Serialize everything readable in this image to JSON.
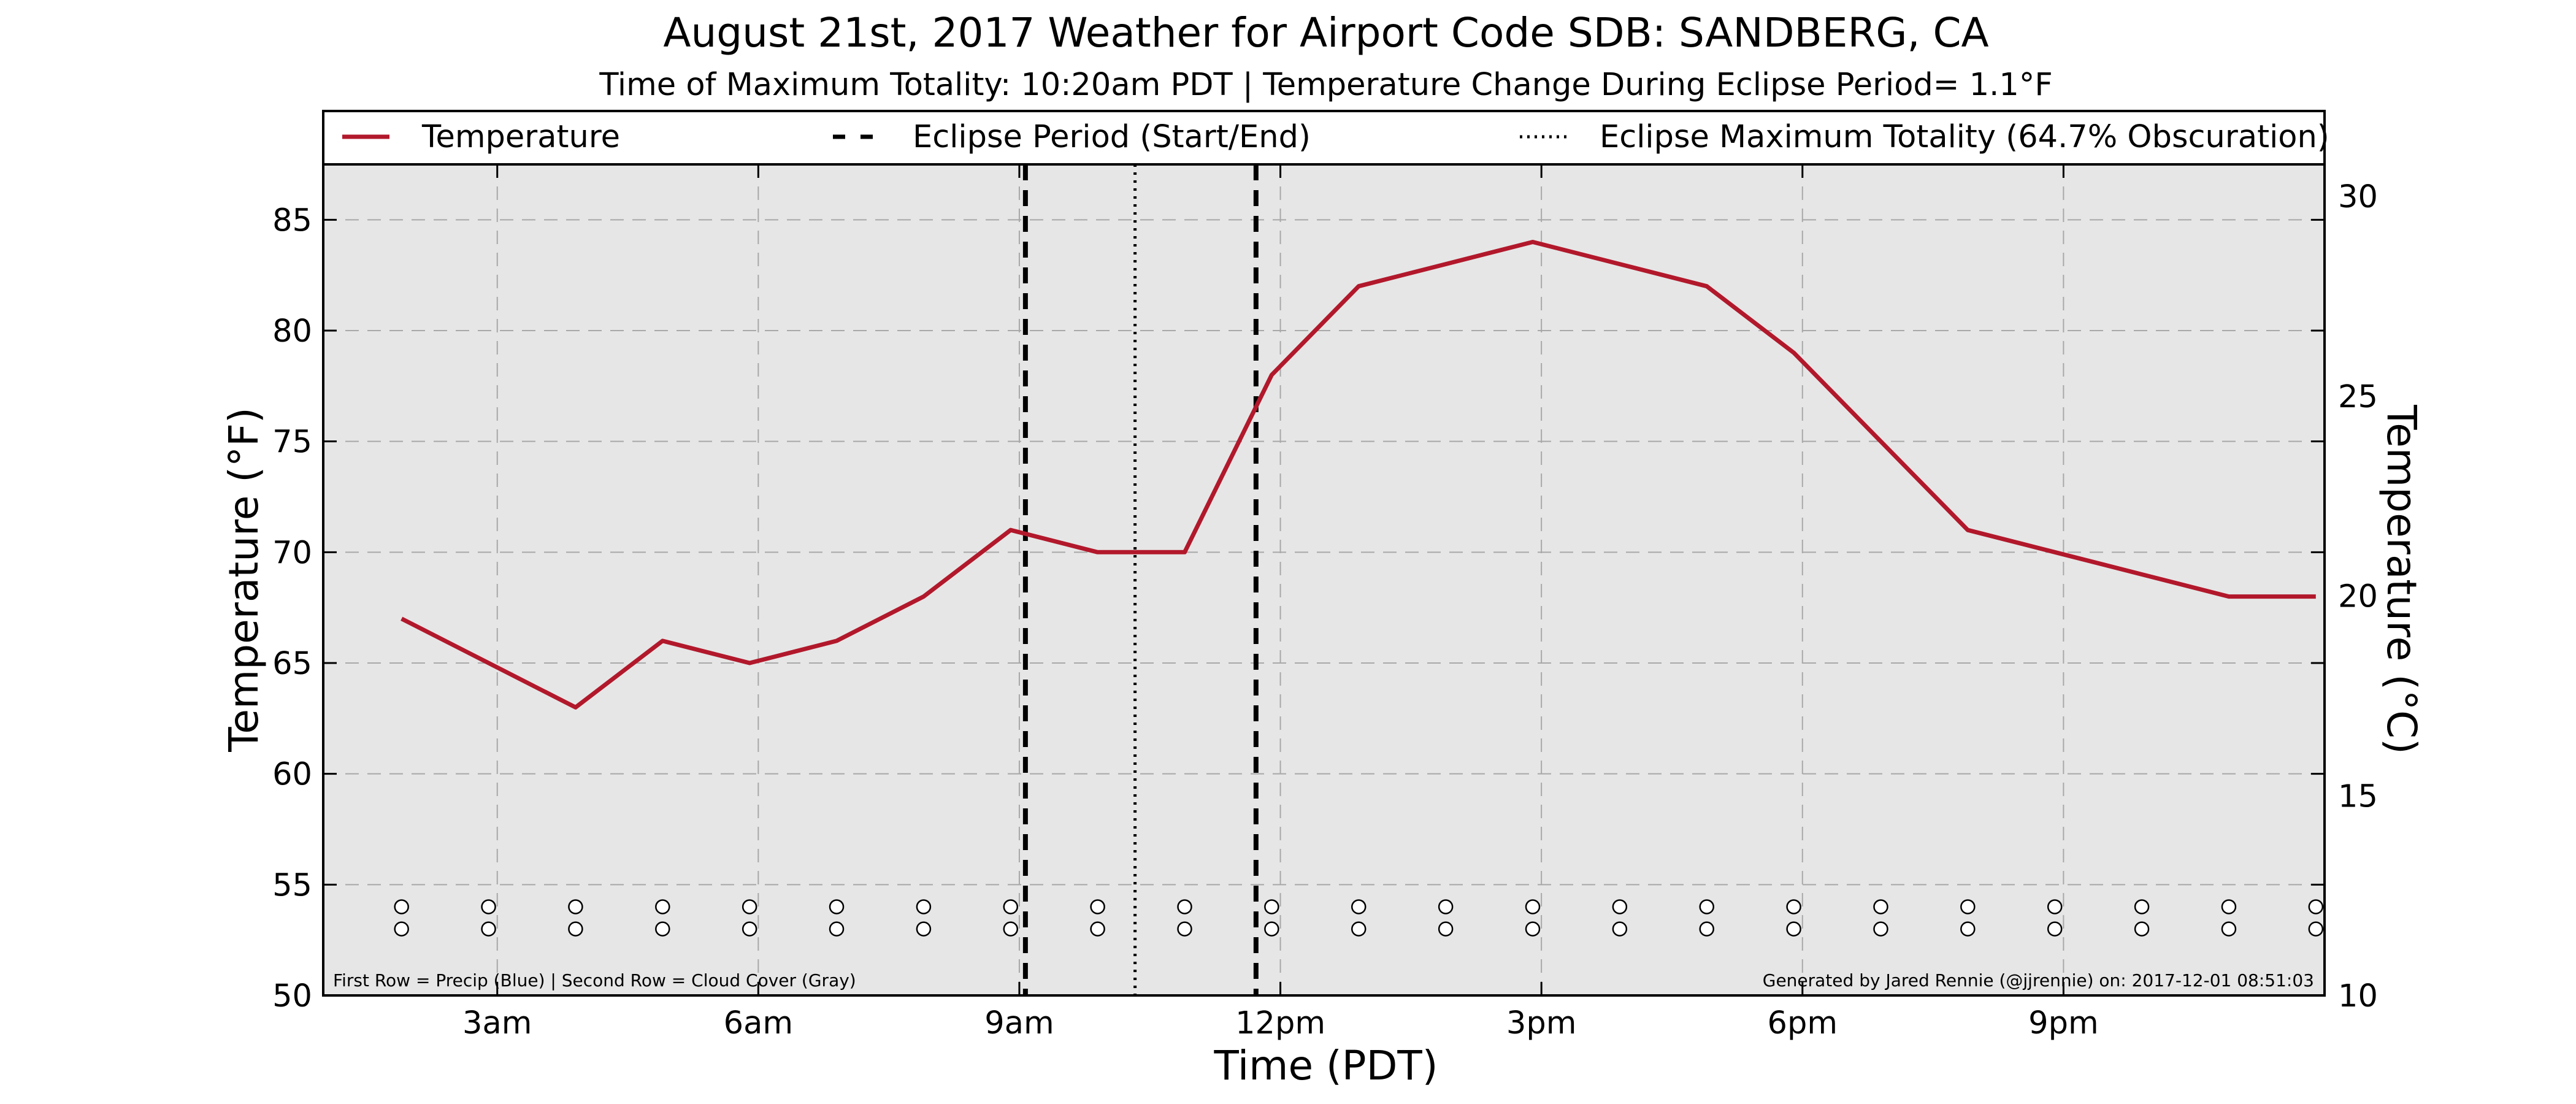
{
  "chart_data": {
    "type": "line",
    "title": "August 21st, 2017 Weather for Airport Code SDB: SANDBERG, CA",
    "subtitle": "Time of Maximum Totality: 10:20am PDT | Temperature Change During Eclipse Period= 1.1°F",
    "xlabel": "Time (PDT)",
    "ylabel": "Temperature (°F)",
    "ylabel_right": "Temperature (°C)",
    "xlim": [
      1.0,
      24.0
    ],
    "ylim": [
      50,
      87.5
    ],
    "ylim_right": [
      10,
      30.8
    ],
    "x_ticks": [
      3,
      6,
      9,
      12,
      15,
      18,
      21
    ],
    "x_tick_labels": [
      "3am",
      "6am",
      "9am",
      "12pm",
      "3pm",
      "6pm",
      "9pm"
    ],
    "y_ticks": [
      50,
      55,
      60,
      65,
      70,
      75,
      80,
      85
    ],
    "y_tick_labels": [
      "50",
      "55",
      "60",
      "65",
      "70",
      "75",
      "80",
      "85"
    ],
    "y_right_ticks": [
      10,
      15,
      20,
      25,
      30
    ],
    "y_right_tick_labels": [
      "10",
      "15",
      "20",
      "25",
      "30"
    ],
    "grid": true,
    "background": "#e6e6e6",
    "series": [
      {
        "name": "Temperature",
        "color": "#b2182b",
        "x": [
          1.9,
          2.9,
          3.9,
          4.9,
          5.9,
          6.9,
          7.9,
          8.9,
          9.9,
          10.9,
          11.9,
          12.9,
          13.9,
          14.9,
          15.9,
          16.9,
          17.9,
          18.9,
          19.9,
          20.9,
          21.9,
          22.9,
          23.9
        ],
        "y": [
          67,
          65,
          63,
          66,
          65,
          66,
          68,
          71,
          70,
          70,
          78,
          82,
          83,
          84,
          83,
          82,
          79,
          75,
          71,
          70,
          69,
          68,
          68
        ]
      }
    ],
    "eclipse_start": 9.07,
    "eclipse_end": 11.72,
    "eclipse_max": 10.33,
    "legend": {
      "placement": "top",
      "entries": [
        "Temperature",
        "Eclipse Period (Start/End)",
        "Eclipse Maximum Totality (64.7% Obscuration)"
      ]
    },
    "marker_rows": {
      "first_row_y": 54.0,
      "second_row_y": 53.0,
      "x": [
        1.9,
        2.9,
        3.9,
        4.9,
        5.9,
        6.9,
        7.9,
        8.9,
        9.9,
        10.9,
        11.9,
        12.9,
        13.9,
        14.9,
        15.9,
        16.9,
        17.9,
        18.9,
        19.9,
        20.9,
        21.9,
        22.9,
        23.9
      ]
    },
    "footnote_left": "First Row = Precip (Blue) | Second Row = Cloud Cover (Gray)",
    "footnote_right": "Generated by Jared Rennie (@jjrennie) on: 2017-12-01 08:51:03"
  }
}
